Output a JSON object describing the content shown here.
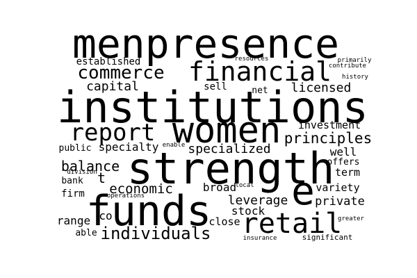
{
  "cloud": {
    "background": "#ffffff",
    "text_color": "#000000",
    "words": {
      "menpresence": "menpresence",
      "institutions": "institutions",
      "women": "women",
      "strength": "strength",
      "funds": "funds",
      "financial": "financial",
      "commerce": "commerce",
      "report": "report",
      "retail": "retail",
      "e": "e",
      "individuals": "individuals",
      "principles": "principles",
      "established": "established",
      "capital": "capital",
      "sell": "sell",
      "net": "net",
      "licensed": "licensed",
      "investment": "investment",
      "public": "public",
      "specialty": "specialty",
      "enable": "enable",
      "specialized": "specialized",
      "well": "well",
      "offers": "offers",
      "term": "term",
      "balance": "balance",
      "division": "division",
      "bank": "bank",
      "t": "t",
      "economic": "economic",
      "broad": "broad",
      "local": "local",
      "variety": "variety",
      "firm": "firm",
      "operations": "operations",
      "leverage": "leverage",
      "private": "private",
      "stock": "stock",
      "range": "range",
      "co": "co",
      "close": "close",
      "greater": "greater",
      "able": "able",
      "insurance": "insurance",
      "significant": "significant",
      "resources": "resources",
      "primarily": "primarily",
      "contribute": "contribute",
      "history": "history"
    }
  }
}
